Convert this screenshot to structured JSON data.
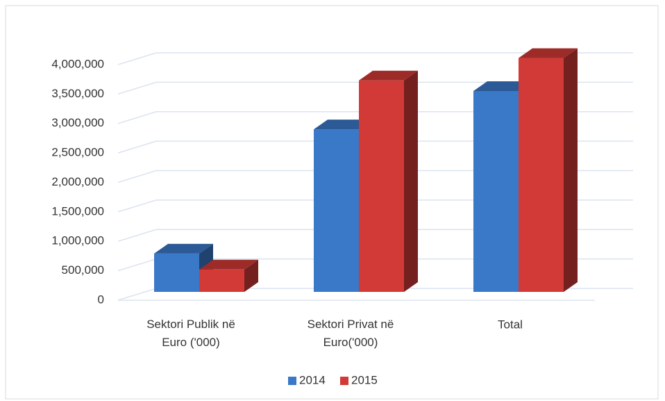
{
  "chart_data": {
    "type": "bar3d",
    "categories": [
      "Sektori Publik në Euro ('000)",
      "Sektori Privat në Euro('000)",
      "Total"
    ],
    "series": [
      {
        "name": "2014",
        "color": "#3a78c8",
        "values": [
          650000,
          2760000,
          3410000
        ]
      },
      {
        "name": "2015",
        "color": "#d13a36",
        "values": [
          380000,
          3590000,
          3970000
        ]
      }
    ],
    "ylim": [
      0,
      4000000
    ],
    "yticks": [
      0,
      {
        "value": 500000,
        "label": "500,000"
      },
      {
        "value": 1000000,
        "label": "1,000,000"
      },
      {
        "value": 1500000,
        "label": "1,500,000"
      },
      {
        "value": 2000000,
        "label": "2,000,000"
      },
      {
        "value": 2500000,
        "label": "2,500,000"
      },
      {
        "value": 3000000,
        "label": "3,000,000"
      },
      {
        "value": 3500000,
        "label": "3,500,000"
      },
      {
        "value": 4000000,
        "label": "4,000,000"
      }
    ],
    "grid": true,
    "legend": "bottom"
  }
}
